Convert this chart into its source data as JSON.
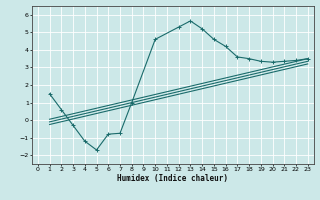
{
  "xlabel": "Humidex (Indice chaleur)",
  "bg_color": "#cce8e8",
  "line_color": "#1a6b6b",
  "grid_color": "#b0d8d8",
  "xlim": [
    -0.5,
    23.5
  ],
  "ylim": [
    -2.5,
    6.5
  ],
  "xticks": [
    0,
    1,
    2,
    3,
    4,
    5,
    6,
    7,
    8,
    9,
    10,
    11,
    12,
    13,
    14,
    15,
    16,
    17,
    18,
    19,
    20,
    21,
    22,
    23
  ],
  "yticks": [
    -2,
    -1,
    0,
    1,
    2,
    3,
    4,
    5,
    6
  ],
  "curve_x": [
    1,
    2,
    3,
    4,
    5,
    6,
    7,
    8,
    10,
    12,
    13,
    14,
    15,
    16,
    17,
    18,
    19,
    20,
    21,
    22,
    23
  ],
  "curve_y": [
    1.5,
    0.6,
    -0.3,
    -1.2,
    -1.7,
    -0.8,
    -0.75,
    1.0,
    4.6,
    5.3,
    5.65,
    5.2,
    4.6,
    4.2,
    3.6,
    3.5,
    3.35,
    3.3,
    3.35,
    3.4,
    3.5
  ],
  "line1_x": [
    1,
    23
  ],
  "line1_y": [
    0.05,
    3.5
  ],
  "line2_x": [
    1,
    23
  ],
  "line2_y": [
    -0.1,
    3.35
  ],
  "line3_x": [
    1,
    23
  ],
  "line3_y": [
    -0.25,
    3.2
  ]
}
